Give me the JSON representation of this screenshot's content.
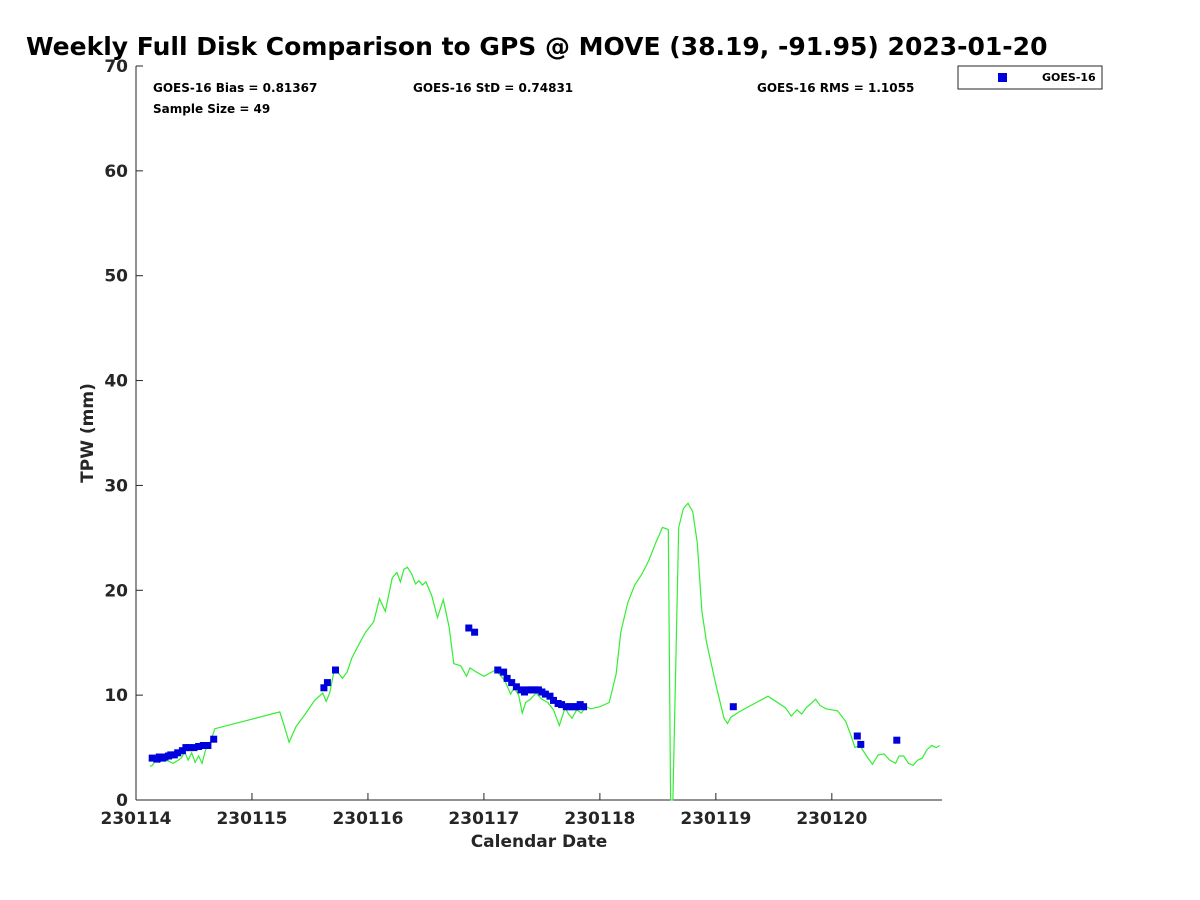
{
  "chart_data": {
    "type": "scatter",
    "title": "Weekly Full Disk Comparison to GPS @ MOVE (38.19, -91.95) 2023-01-20",
    "xlabel": "Calendar Date",
    "ylabel": "TPW (mm)",
    "xlim": [
      230114,
      230121
    ],
    "ylim": [
      0,
      70
    ],
    "x_ticks": [
      230114,
      230115,
      230116,
      230117,
      230118,
      230119,
      230120
    ],
    "x_tick_labels": [
      "230114",
      "230115",
      "230116",
      "230117",
      "230118",
      "230119",
      "230120"
    ],
    "y_ticks": [
      0,
      10,
      20,
      30,
      40,
      50,
      60,
      70
    ],
    "y_tick_labels": [
      "0",
      "10",
      "20",
      "30",
      "40",
      "50",
      "60",
      "70"
    ],
    "grid": false,
    "legend_position": "outside-top-right",
    "stats": {
      "bias": "GOES-16 Bias = 0.81367",
      "std": "GOES-16 StD = 0.74831",
      "rms": "GOES-16 RMS = 1.1055",
      "sample": "Sample Size = 49"
    },
    "colors": {
      "gps_line": "#33ee33",
      "goes_marker": "#0000dd"
    },
    "series": [
      {
        "name": "GOES-16",
        "marker": "square",
        "x": [
          230114.14,
          230114.18,
          230114.2,
          230114.23,
          230114.25,
          230114.28,
          230114.3,
          230114.33,
          230114.36,
          230114.4,
          230114.43,
          230114.46,
          230114.5,
          230114.54,
          230114.58,
          230114.62,
          230114.67,
          230115.62,
          230115.65,
          230115.72,
          230116.87,
          230116.92,
          230117.12,
          230117.17,
          230117.2,
          230117.24,
          230117.28,
          230117.32,
          230117.35,
          230117.38,
          230117.41,
          230117.44,
          230117.47,
          230117.5,
          230117.53,
          230117.57,
          230117.6,
          230117.64,
          230117.67,
          230117.71,
          230117.74,
          230117.77,
          230117.8,
          230117.83,
          230117.86,
          230119.15,
          230120.22,
          230120.25,
          230120.56
        ],
        "y": [
          4.0,
          3.9,
          4.1,
          4.0,
          4.1,
          4.2,
          4.3,
          4.3,
          4.5,
          4.7,
          5.0,
          5.0,
          5.0,
          5.1,
          5.2,
          5.2,
          5.8,
          10.7,
          11.2,
          12.4,
          16.4,
          16.0,
          12.4,
          12.2,
          11.6,
          11.2,
          10.8,
          10.5,
          10.3,
          10.5,
          10.5,
          10.5,
          10.5,
          10.3,
          10.1,
          9.9,
          9.5,
          9.2,
          9.1,
          8.9,
          8.9,
          8.9,
          8.9,
          9.1,
          8.9,
          8.9,
          6.1,
          5.3,
          5.7
        ]
      }
    ],
    "gps_line": {
      "x": [
        230114.12,
        230114.14,
        230114.17,
        230114.2,
        230114.24,
        230114.28,
        230114.32,
        230114.35,
        230114.39,
        230114.42,
        230114.45,
        230114.48,
        230114.51,
        230114.54,
        230114.57,
        230114.6,
        230114.64,
        230114.68,
        230115.24,
        230115.28,
        230115.32,
        230115.38,
        230115.46,
        230115.54,
        230115.61,
        230115.64,
        230115.67,
        230115.71,
        230115.74,
        230115.78,
        230115.82,
        230115.86,
        230115.92,
        230115.98,
        230116.05,
        230116.1,
        230116.15,
        230116.18,
        230116.21,
        230116.25,
        230116.28,
        230116.31,
        230116.34,
        230116.38,
        230116.41,
        230116.44,
        230116.47,
        230116.5,
        230116.55,
        230116.6,
        230116.65,
        230116.7,
        230116.74,
        230116.8,
        230116.85,
        230116.88,
        230116.92,
        230117.0,
        230117.1,
        230117.18,
        230117.23,
        230117.26,
        230117.3,
        230117.33,
        230117.36,
        230117.4,
        230117.45,
        230117.5,
        230117.55,
        230117.6,
        230117.65,
        230117.7,
        230117.73,
        230117.76,
        230117.8,
        230117.84,
        230117.88,
        230117.92,
        230118.0,
        230118.08,
        230118.14,
        230118.18,
        230118.24,
        230118.3,
        230118.36,
        230118.42,
        230118.48,
        230118.54,
        230118.59,
        230118.61,
        230118.63,
        230118.68,
        230118.72,
        230118.76,
        230118.8,
        230118.84,
        230118.88,
        230118.92,
        230119.0,
        230119.07,
        230119.1,
        230119.13,
        230119.2,
        230119.3,
        230119.45,
        230119.6,
        230119.65,
        230119.7,
        230119.74,
        230119.78,
        230119.82,
        230119.86,
        230119.9,
        230119.95,
        230120.0,
        230120.05,
        230120.12,
        230120.16,
        230120.2,
        230120.24,
        230120.3,
        230120.35,
        230120.4,
        230120.45,
        230120.5,
        230120.55,
        230120.58,
        230120.62,
        230120.66,
        230120.7,
        230120.74,
        230120.78,
        230120.82,
        230120.86,
        230120.9,
        230120.93
      ],
      "y": [
        3.2,
        3.3,
        3.8,
        3.6,
        3.9,
        3.7,
        3.5,
        3.7,
        4.0,
        4.6,
        3.8,
        4.5,
        3.6,
        4.2,
        3.5,
        4.8,
        5.5,
        6.8,
        8.4,
        7.0,
        5.5,
        7.0,
        8.2,
        9.5,
        10.2,
        9.4,
        10.2,
        12.4,
        12.2,
        11.6,
        12.2,
        13.5,
        14.8,
        16.0,
        17.0,
        19.2,
        18.0,
        19.6,
        21.2,
        21.7,
        20.8,
        22.0,
        22.2,
        21.5,
        20.6,
        20.9,
        20.5,
        20.8,
        19.5,
        17.4,
        19.1,
        16.5,
        13.0,
        12.8,
        11.8,
        12.6,
        12.3,
        11.8,
        12.4,
        11.4,
        10.1,
        10.7,
        10.0,
        8.3,
        9.3,
        9.6,
        10.2,
        9.6,
        9.3,
        8.6,
        7.1,
        8.8,
        8.2,
        7.8,
        8.6,
        8.3,
        8.9,
        8.7,
        8.9,
        9.3,
        12.0,
        16.0,
        18.8,
        20.5,
        21.5,
        22.8,
        24.5,
        26.0,
        25.8,
        0,
        0,
        26.0,
        27.8,
        28.3,
        27.5,
        24.5,
        18.0,
        15.0,
        11.0,
        7.8,
        7.3,
        7.9,
        8.4,
        9.0,
        9.9,
        8.8,
        8.0,
        8.6,
        8.2,
        8.8,
        9.2,
        9.6,
        9.0,
        8.7,
        8.6,
        8.5,
        7.5,
        6.3,
        5.0,
        5.2,
        4.2,
        3.4,
        4.3,
        4.4,
        3.8,
        3.5,
        4.2,
        4.2,
        3.5,
        3.3,
        3.8,
        4.0,
        4.8,
        5.2,
        5.0,
        5.2
      ]
    }
  }
}
